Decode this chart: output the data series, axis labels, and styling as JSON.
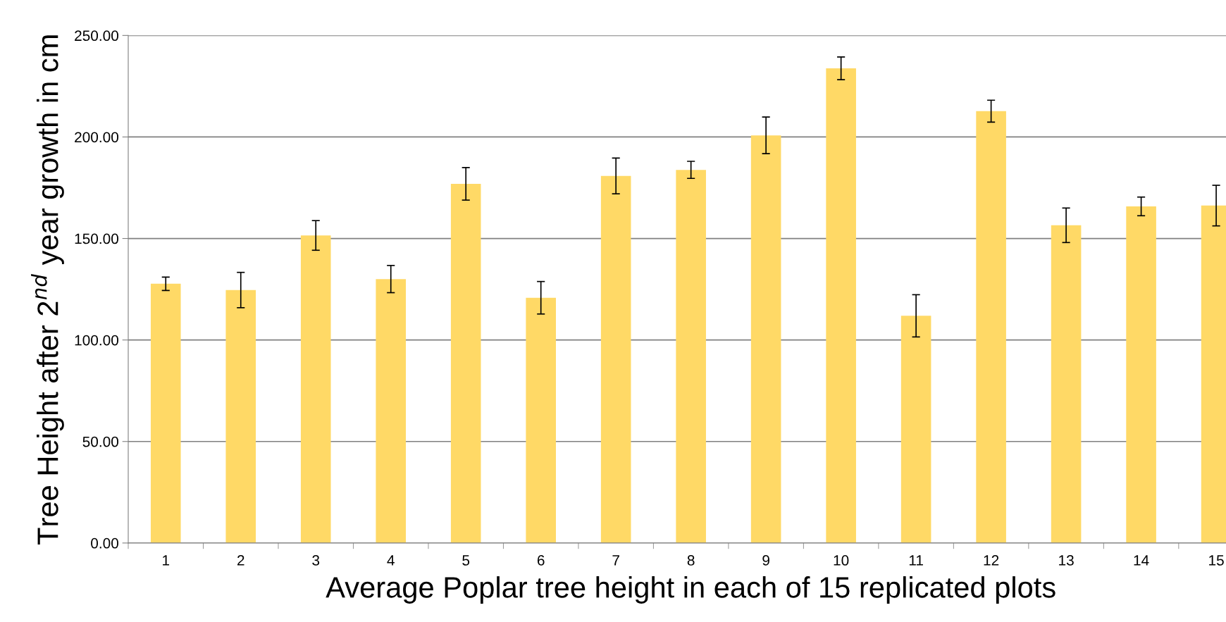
{
  "chart_data": {
    "type": "bar",
    "xlabel": "Average Poplar tree height in each of 15 replicated plots",
    "ylabel": "Tree Height after 2$^{nd}$ year growth in cm",
    "categories": [
      "1",
      "2",
      "3",
      "4",
      "5",
      "6",
      "7",
      "8",
      "9",
      "10",
      "11",
      "12",
      "13",
      "14",
      "15"
    ],
    "values": [
      127.7,
      124.6,
      151.5,
      130.0,
      176.9,
      120.8,
      180.8,
      183.8,
      200.8,
      233.8,
      111.9,
      212.7,
      156.5,
      165.8,
      166.2
    ],
    "errors": [
      3.3,
      8.7,
      7.3,
      6.7,
      8.0,
      8.0,
      8.8,
      4.2,
      9.0,
      5.6,
      10.4,
      5.4,
      8.5,
      4.6,
      10.0
    ],
    "color": "#ffd966",
    "ylim": [
      0,
      250
    ],
    "yticks": [
      {
        "value": 0,
        "label": "0.00"
      },
      {
        "value": 50,
        "label": "50.00"
      },
      {
        "value": 100,
        "label": "100.00"
      },
      {
        "value": 150,
        "label": "150.00"
      },
      {
        "value": 200,
        "label": "200.00"
      },
      {
        "value": 250,
        "label": "250.00"
      }
    ],
    "grid": "y"
  }
}
